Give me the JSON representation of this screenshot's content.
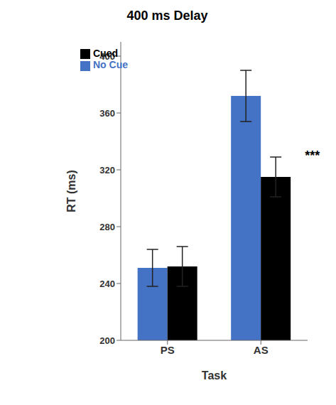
{
  "chart_data": {
    "type": "bar",
    "title": "400 ms Delay",
    "xlabel": "Task",
    "ylabel": "RT (ms)",
    "categories": [
      "PS",
      "AS"
    ],
    "series": [
      {
        "name": "No Cue",
        "color": "#4472C4",
        "values": [
          251,
          372
        ],
        "errors": [
          13,
          18
        ]
      },
      {
        "name": "Cued",
        "color": "#000000",
        "values": [
          252,
          315
        ],
        "errors": [
          14,
          14
        ]
      }
    ],
    "ylim": [
      200,
      410
    ],
    "yticks": [
      200,
      240,
      280,
      320,
      360,
      400
    ],
    "legend": "upper left",
    "annotations": [
      {
        "text": "***",
        "x": "AS",
        "y": 330
      }
    ]
  }
}
